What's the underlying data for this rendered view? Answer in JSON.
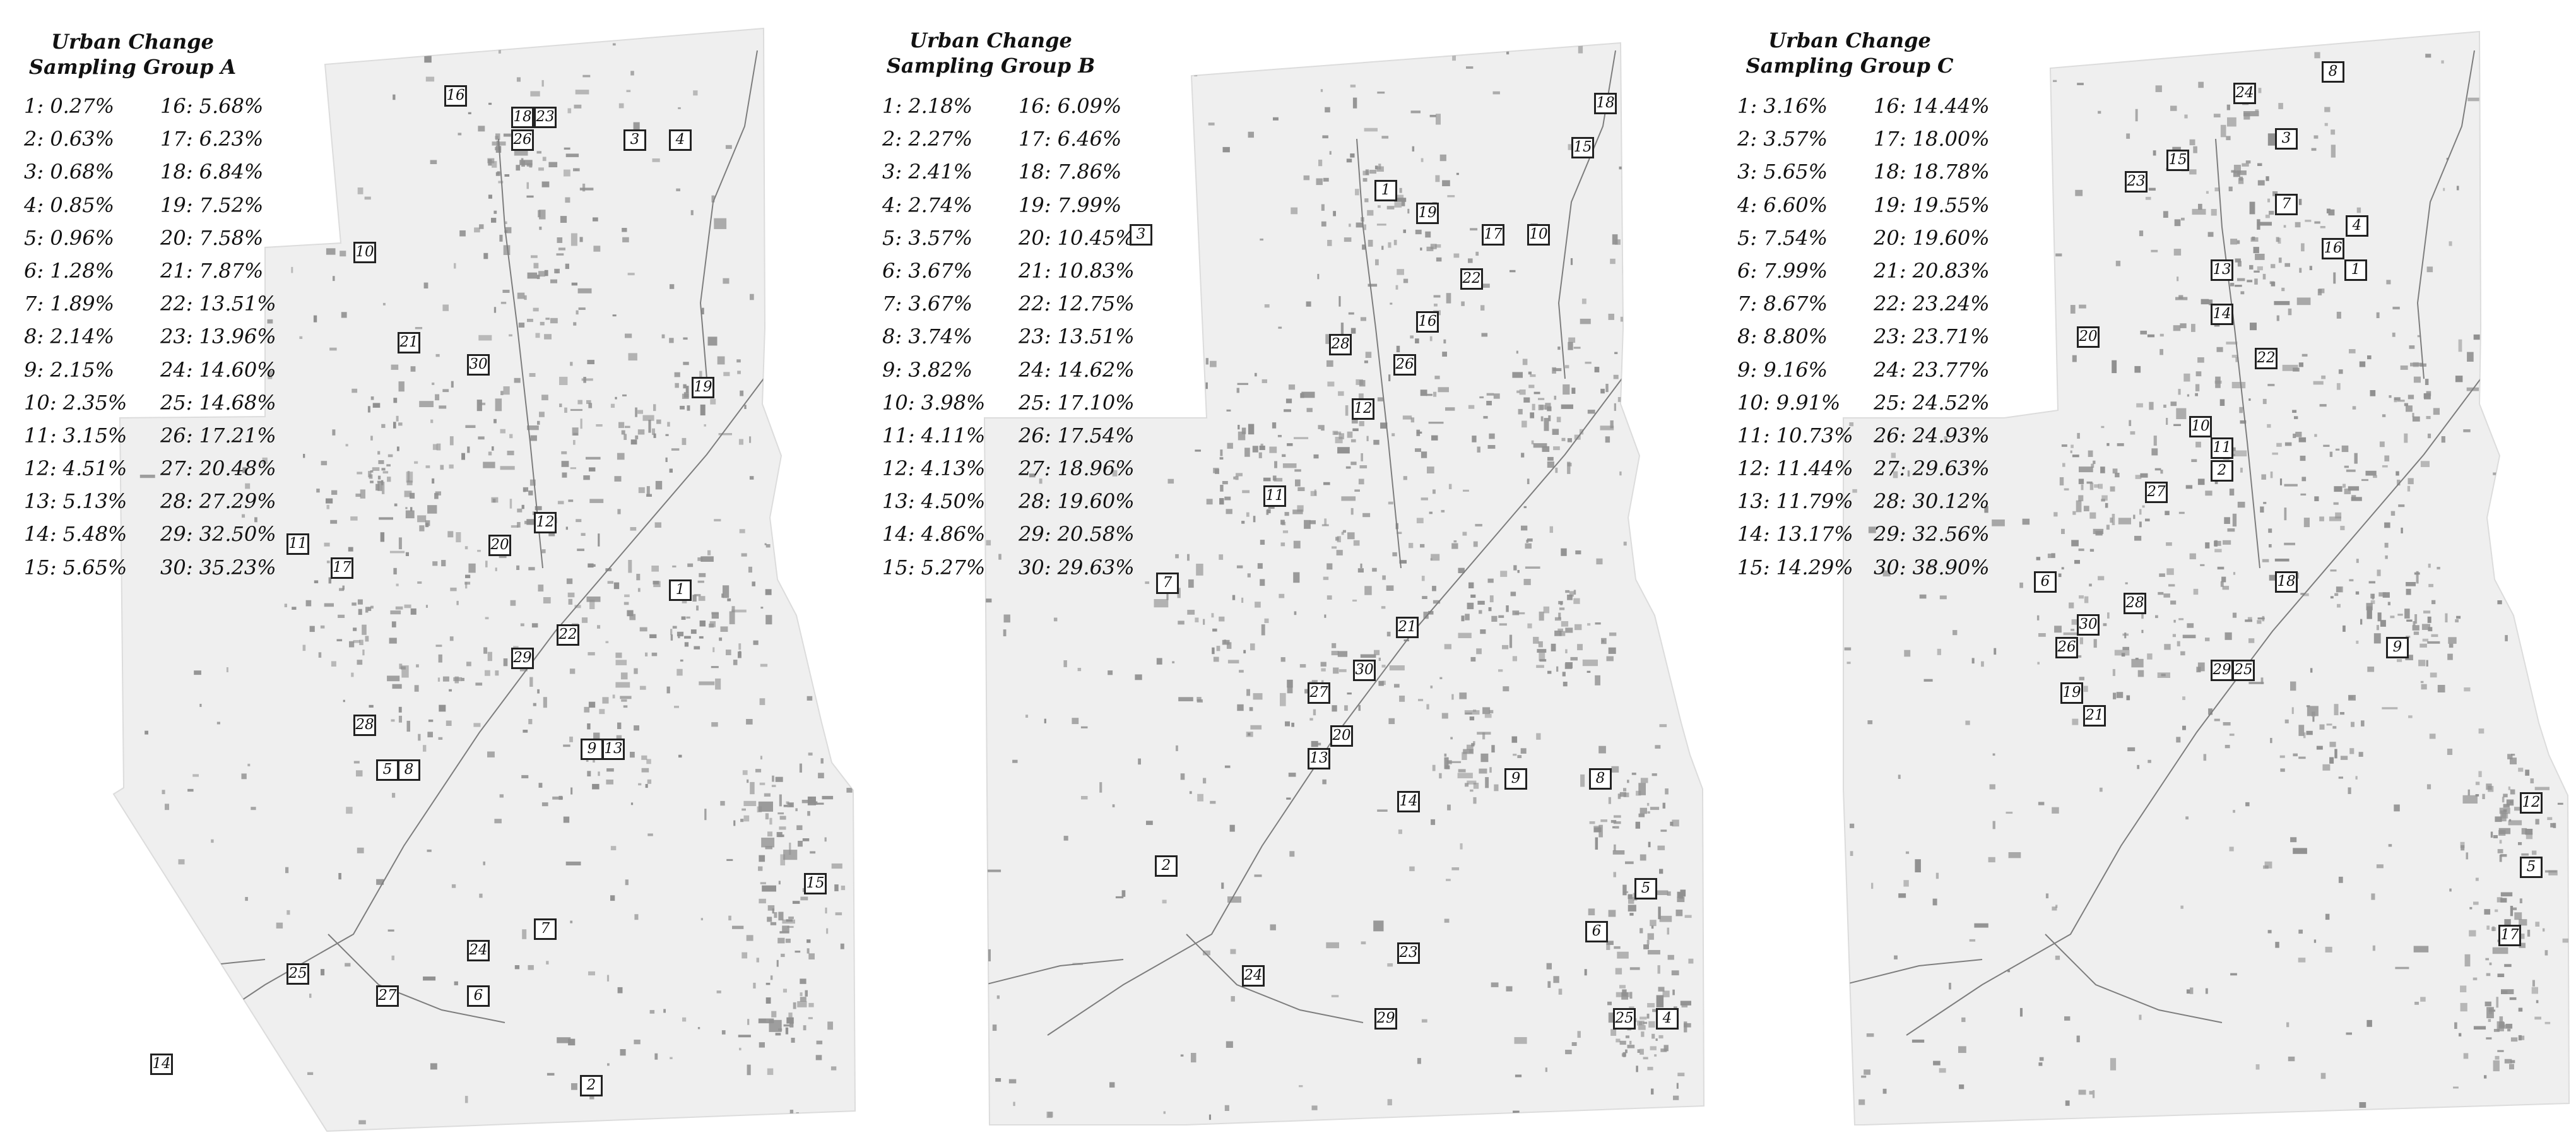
{
  "colors": {
    "land": "#efefef",
    "urban": "#909090",
    "road": "#7d7d7d",
    "marker_border": "#222222",
    "text": "#111111"
  },
  "panels": [
    {
      "title_line1": "Urban Change",
      "title_line2": "Sampling Group A",
      "samples": [
        {
          "id": "1",
          "value": "0.27%"
        },
        {
          "id": "2",
          "value": "0.63%"
        },
        {
          "id": "3",
          "value": "0.68%"
        },
        {
          "id": "4",
          "value": "0.85%"
        },
        {
          "id": "5",
          "value": "0.96%"
        },
        {
          "id": "6",
          "value": "1.28%"
        },
        {
          "id": "7",
          "value": "1.89%"
        },
        {
          "id": "8",
          "value": "2.14%"
        },
        {
          "id": "9",
          "value": "2.15%"
        },
        {
          "id": "10",
          "value": "2.35%"
        },
        {
          "id": "11",
          "value": "3.15%"
        },
        {
          "id": "12",
          "value": "4.51%"
        },
        {
          "id": "13",
          "value": "5.13%"
        },
        {
          "id": "14",
          "value": "5.48%"
        },
        {
          "id": "15",
          "value": "5.65%"
        },
        {
          "id": "16",
          "value": "5.68%"
        },
        {
          "id": "17",
          "value": "6.23%"
        },
        {
          "id": "18",
          "value": "6.84%"
        },
        {
          "id": "19",
          "value": "7.52%"
        },
        {
          "id": "20",
          "value": "7.58%"
        },
        {
          "id": "21",
          "value": "7.87%"
        },
        {
          "id": "22",
          "value": "13.51%"
        },
        {
          "id": "23",
          "value": "13.96%"
        },
        {
          "id": "24",
          "value": "14.60%"
        },
        {
          "id": "25",
          "value": "14.68%"
        },
        {
          "id": "26",
          "value": "17.21%"
        },
        {
          "id": "27",
          "value": "20.48%"
        },
        {
          "id": "28",
          "value": "27.29%"
        },
        {
          "id": "29",
          "value": "32.50%"
        },
        {
          "id": "30",
          "value": "35.23%"
        }
      ]
    },
    {
      "title_line1": "Urban Change",
      "title_line2": "Sampling Group B",
      "samples": [
        {
          "id": "1",
          "value": "2.18%"
        },
        {
          "id": "2",
          "value": "2.27%"
        },
        {
          "id": "3",
          "value": "2.41%"
        },
        {
          "id": "4",
          "value": "2.74%"
        },
        {
          "id": "5",
          "value": "3.57%"
        },
        {
          "id": "6",
          "value": "3.67%"
        },
        {
          "id": "7",
          "value": "3.67%"
        },
        {
          "id": "8",
          "value": "3.74%"
        },
        {
          "id": "9",
          "value": "3.82%"
        },
        {
          "id": "10",
          "value": "3.98%"
        },
        {
          "id": "11",
          "value": "4.11%"
        },
        {
          "id": "12",
          "value": "4.13%"
        },
        {
          "id": "13",
          "value": "4.50%"
        },
        {
          "id": "14",
          "value": "4.86%"
        },
        {
          "id": "15",
          "value": "5.27%"
        },
        {
          "id": "16",
          "value": "6.09%"
        },
        {
          "id": "17",
          "value": "6.46%"
        },
        {
          "id": "18",
          "value": "7.86%"
        },
        {
          "id": "19",
          "value": "7.99%"
        },
        {
          "id": "20",
          "value": "10.45%"
        },
        {
          "id": "21",
          "value": "10.83%"
        },
        {
          "id": "22",
          "value": "12.75%"
        },
        {
          "id": "23",
          "value": "13.51%"
        },
        {
          "id": "24",
          "value": "14.62%"
        },
        {
          "id": "25",
          "value": "17.10%"
        },
        {
          "id": "26",
          "value": "17.54%"
        },
        {
          "id": "27",
          "value": "18.96%"
        },
        {
          "id": "28",
          "value": "19.60%"
        },
        {
          "id": "29",
          "value": "20.58%"
        },
        {
          "id": "30",
          "value": "29.63%"
        }
      ]
    },
    {
      "title_line1": "Urban Change",
      "title_line2": "Sampling Group C",
      "samples": [
        {
          "id": "1",
          "value": "3.16%"
        },
        {
          "id": "2",
          "value": "3.57%"
        },
        {
          "id": "3",
          "value": "5.65%"
        },
        {
          "id": "4",
          "value": "6.60%"
        },
        {
          "id": "5",
          "value": "7.54%"
        },
        {
          "id": "6",
          "value": "7.99%"
        },
        {
          "id": "7",
          "value": "8.67%"
        },
        {
          "id": "8",
          "value": "8.80%"
        },
        {
          "id": "9",
          "value": "9.16%"
        },
        {
          "id": "10",
          "value": "9.91%"
        },
        {
          "id": "11",
          "value": "10.73%"
        },
        {
          "id": "12",
          "value": "11.44%"
        },
        {
          "id": "13",
          "value": "11.79%"
        },
        {
          "id": "14",
          "value": "13.17%"
        },
        {
          "id": "15",
          "value": "14.29%"
        },
        {
          "id": "16",
          "value": "14.44%"
        },
        {
          "id": "17",
          "value": "18.00%"
        },
        {
          "id": "18",
          "value": "18.78%"
        },
        {
          "id": "19",
          "value": "19.55%"
        },
        {
          "id": "20",
          "value": "19.60%"
        },
        {
          "id": "21",
          "value": "20.83%"
        },
        {
          "id": "22",
          "value": "23.24%"
        },
        {
          "id": "23",
          "value": "23.71%"
        },
        {
          "id": "24",
          "value": "23.77%"
        },
        {
          "id": "25",
          "value": "24.52%"
        },
        {
          "id": "26",
          "value": "24.93%"
        },
        {
          "id": "27",
          "value": "29.63%"
        },
        {
          "id": "28",
          "value": "30.12%"
        },
        {
          "id": "29",
          "value": "32.56%"
        },
        {
          "id": "30",
          "value": "38.90%"
        }
      ]
    }
  ]
}
